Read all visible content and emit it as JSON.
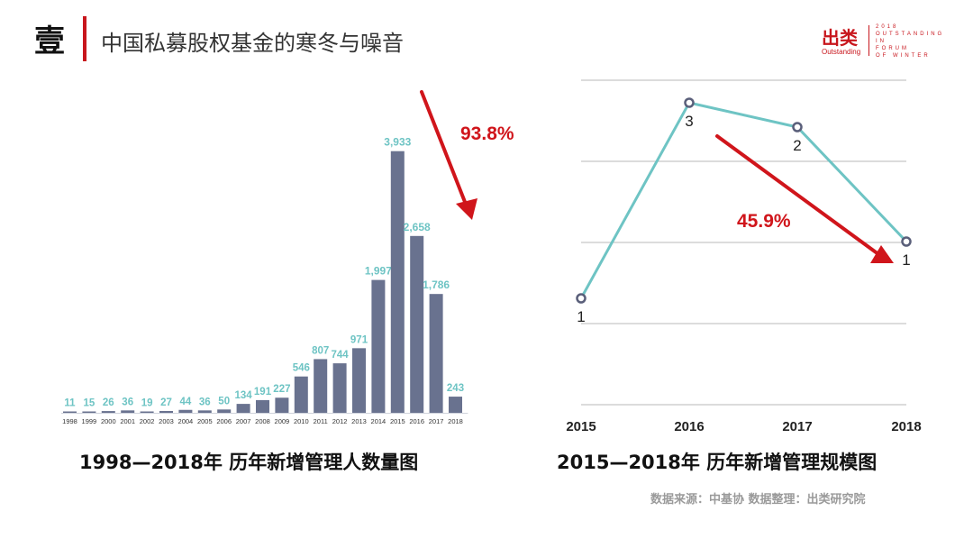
{
  "header": {
    "number": "壹",
    "title": "中国私募股权基金的寒冬与噪音"
  },
  "logo": {
    "name": "出类",
    "sub": "Outstanding",
    "lines": [
      "2018",
      "OUTSTANDING",
      "IN",
      "FORUM",
      "OF WINTER"
    ]
  },
  "colors": {
    "accent": "#c8161d",
    "bar": "#69728f",
    "bar_label": "#6ec4c4",
    "line": "#6ec4c4",
    "arrow": "#d0151b"
  },
  "chart_data": [
    {
      "type": "bar",
      "title": "1998—2018年 历年新增管理人数量图",
      "categories": [
        "1998",
        "1999",
        "2000",
        "2001",
        "2002",
        "2003",
        "2004",
        "2005",
        "2006",
        "2007",
        "2008",
        "2009",
        "2010",
        "2011",
        "2012",
        "2013",
        "2014",
        "2015",
        "2016",
        "2017",
        "2018"
      ],
      "values": [
        11,
        15,
        26,
        36,
        19,
        27,
        44,
        36,
        50,
        134,
        191,
        227,
        546,
        807,
        744,
        971,
        1997,
        3933,
        2658,
        1786,
        243
      ],
      "value_labels": [
        "11",
        "15",
        "26",
        "36",
        "19",
        "27",
        "44",
        "36",
        "50",
        "134",
        "191",
        "227",
        "546",
        "807",
        "744",
        "971",
        "1,997",
        "3,933",
        "2,658",
        "1,786",
        "243"
      ],
      "ylim": [
        0,
        4200
      ],
      "annotation": "93.8%"
    },
    {
      "type": "line",
      "title": "2015—2018年 历年新增管理规模图",
      "categories": [
        "2015",
        "2016",
        "2017",
        "2018"
      ],
      "values": [
        1,
        3,
        2,
        1
      ],
      "value_labels": [
        "1",
        "3",
        "2",
        "1"
      ],
      "grid": true,
      "annotation": "45.9%"
    }
  ],
  "source": "数据来源：中基协  数据整理：出类研究院"
}
